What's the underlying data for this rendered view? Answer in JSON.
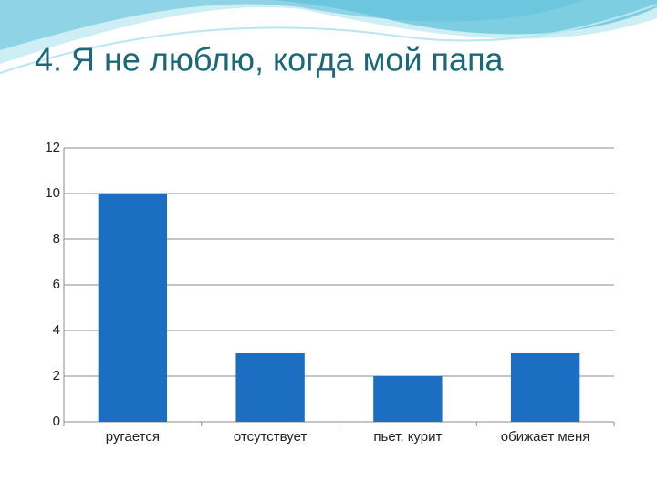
{
  "chart_data": {
    "type": "bar",
    "title": "4. Я не люблю, когда мой папа",
    "categories": [
      "ругается",
      "отсутствует",
      "пьет, курит",
      "обижает меня"
    ],
    "values": [
      10,
      3,
      2,
      3
    ],
    "color": "#1b6ec2",
    "ylim": [
      0,
      12
    ],
    "yticks": [
      0,
      2,
      4,
      6,
      8,
      10,
      12
    ],
    "grid": true
  }
}
